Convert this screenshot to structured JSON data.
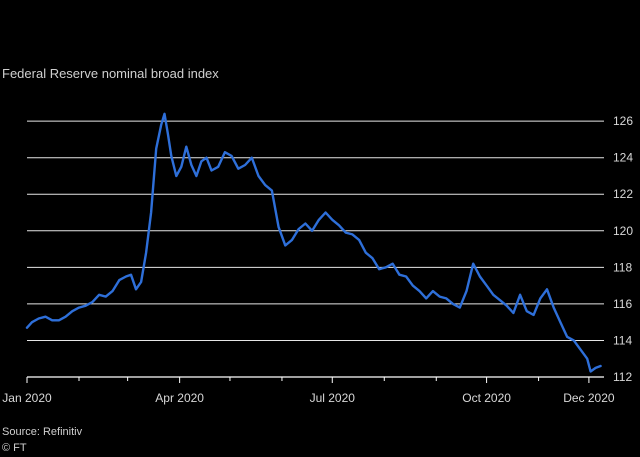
{
  "subtitle": "Federal Reserve nominal broad index",
  "source": "Source: Refinitiv",
  "copyright": "© FT",
  "colors": {
    "background": "#000000",
    "line": "#2e6fd9",
    "grid": "#e6e6e6",
    "text": "#d8d8d8"
  },
  "chart_data": {
    "type": "line",
    "title": "",
    "xlabel": "",
    "ylabel": "",
    "ylim": [
      112,
      126.5
    ],
    "xlim": [
      "2020-01-01",
      "2020-12-10"
    ],
    "grid": true,
    "y_ticks": [
      112,
      114,
      116,
      118,
      120,
      122,
      124,
      126
    ],
    "x_tick_labels": [
      {
        "date": "2020-01-01",
        "label": "Jan 2020"
      },
      {
        "date": "2020-04-01",
        "label": "Apr 2020"
      },
      {
        "date": "2020-07-01",
        "label": "Jul 2020"
      },
      {
        "date": "2020-10-01",
        "label": "Oct 2020"
      },
      {
        "date": "2020-12-01",
        "label": "Dec 2020"
      }
    ],
    "x_minor_ticks": [
      "2020-02-01",
      "2020-03-01",
      "2020-05-01",
      "2020-06-01",
      "2020-08-01",
      "2020-09-01",
      "2020-11-01"
    ],
    "series": [
      {
        "name": "",
        "x": [
          "2020-01-01",
          "2020-01-04",
          "2020-01-08",
          "2020-01-12",
          "2020-01-16",
          "2020-01-20",
          "2020-01-24",
          "2020-01-28",
          "2020-02-01",
          "2020-02-05",
          "2020-02-09",
          "2020-02-13",
          "2020-02-17",
          "2020-02-21",
          "2020-02-25",
          "2020-02-29",
          "2020-03-03",
          "2020-03-06",
          "2020-03-09",
          "2020-03-12",
          "2020-03-15",
          "2020-03-18",
          "2020-03-21",
          "2020-03-23",
          "2020-03-25",
          "2020-03-27",
          "2020-03-30",
          "2020-04-02",
          "2020-04-05",
          "2020-04-08",
          "2020-04-11",
          "2020-04-14",
          "2020-04-17",
          "2020-04-20",
          "2020-04-24",
          "2020-04-28",
          "2020-05-02",
          "2020-05-06",
          "2020-05-10",
          "2020-05-14",
          "2020-05-18",
          "2020-05-22",
          "2020-05-26",
          "2020-05-30",
          "2020-06-03",
          "2020-06-07",
          "2020-06-11",
          "2020-06-15",
          "2020-06-19",
          "2020-06-23",
          "2020-06-27",
          "2020-07-01",
          "2020-07-05",
          "2020-07-09",
          "2020-07-13",
          "2020-07-17",
          "2020-07-21",
          "2020-07-25",
          "2020-07-29",
          "2020-08-02",
          "2020-08-06",
          "2020-08-10",
          "2020-08-14",
          "2020-08-18",
          "2020-08-22",
          "2020-08-26",
          "2020-08-30",
          "2020-09-03",
          "2020-09-07",
          "2020-09-11",
          "2020-09-15",
          "2020-09-19",
          "2020-09-23",
          "2020-09-27",
          "2020-10-01",
          "2020-10-05",
          "2020-10-09",
          "2020-10-13",
          "2020-10-17",
          "2020-10-21",
          "2020-10-25",
          "2020-10-29",
          "2020-11-02",
          "2020-11-06",
          "2020-11-10",
          "2020-11-14",
          "2020-11-18",
          "2020-11-22",
          "2020-11-26",
          "2020-11-30",
          "2020-12-02",
          "2020-12-05",
          "2020-12-08"
        ],
        "values": [
          114.7,
          115.0,
          115.2,
          115.3,
          115.1,
          115.1,
          115.3,
          115.6,
          115.8,
          115.9,
          116.1,
          116.5,
          116.4,
          116.7,
          117.3,
          117.5,
          117.6,
          116.8,
          117.2,
          118.8,
          121.0,
          124.5,
          125.8,
          126.4,
          125.3,
          124.1,
          123.0,
          123.5,
          124.6,
          123.6,
          123.0,
          123.8,
          124.0,
          123.3,
          123.5,
          124.3,
          124.1,
          123.4,
          123.6,
          124.0,
          123.0,
          122.5,
          122.2,
          120.2,
          119.2,
          119.5,
          120.1,
          120.4,
          120.0,
          120.6,
          121.0,
          120.6,
          120.3,
          119.9,
          119.8,
          119.5,
          118.8,
          118.5,
          117.9,
          118.0,
          118.2,
          117.6,
          117.5,
          117.0,
          116.7,
          116.3,
          116.7,
          116.4,
          116.3,
          116.0,
          115.8,
          116.7,
          118.2,
          117.5,
          117.0,
          116.5,
          116.2,
          115.9,
          115.5,
          116.5,
          115.6,
          115.4,
          116.3,
          116.8,
          115.8,
          115.0,
          114.2,
          114.0,
          113.5,
          113.0,
          112.3,
          112.5,
          112.6
        ]
      }
    ]
  }
}
